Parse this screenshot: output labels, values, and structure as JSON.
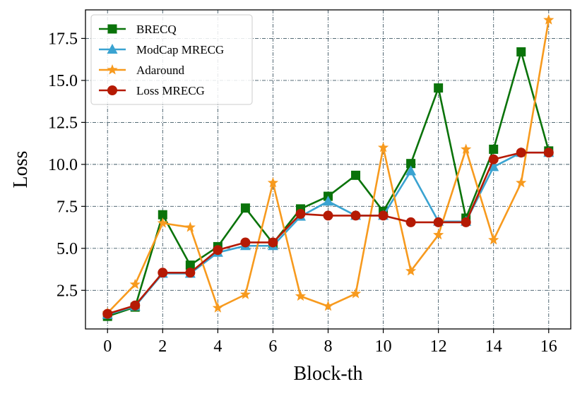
{
  "chart_data": {
    "type": "line",
    "title": "",
    "xlabel": "Block-th",
    "ylabel": "Loss",
    "xlim": [
      -0.8,
      16.8
    ],
    "ylim": [
      0.2,
      19.2
    ],
    "xticks": [
      0,
      2,
      4,
      6,
      8,
      10,
      12,
      14,
      16
    ],
    "xtick_labels": [
      "0",
      "2",
      "4",
      "6",
      "8",
      "10",
      "12",
      "14",
      "16"
    ],
    "yticks": [
      2.5,
      5.0,
      7.5,
      10.0,
      12.5,
      15.0,
      17.5
    ],
    "ytick_labels": [
      "2.5",
      "5.0",
      "7.5",
      "10.0",
      "12.5",
      "15.0",
      "17.5"
    ],
    "grid": true,
    "legend_position": "top-left",
    "x": [
      0,
      1,
      2,
      3,
      4,
      5,
      6,
      7,
      8,
      9,
      10,
      11,
      12,
      13,
      14,
      15,
      16
    ],
    "series": [
      {
        "name": "BRECQ",
        "color": "#0a730a",
        "marker": "square",
        "values": [
          0.95,
          1.5,
          7.0,
          4.0,
          5.1,
          7.4,
          5.3,
          7.35,
          8.1,
          9.35,
          7.2,
          10.05,
          14.55,
          6.8,
          10.9,
          16.7,
          10.8
        ]
      },
      {
        "name": "ModCap MRECG",
        "color": "#3aa3d1",
        "marker": "triangle",
        "values": [
          1.05,
          1.55,
          3.5,
          3.5,
          4.75,
          5.15,
          5.15,
          6.9,
          7.8,
          6.95,
          6.95,
          9.6,
          6.6,
          6.6,
          9.85,
          10.7,
          10.7
        ]
      },
      {
        "name": "Adaround",
        "color": "#f79a1e",
        "marker": "star",
        "values": [
          1.15,
          2.85,
          6.5,
          6.25,
          1.45,
          2.25,
          8.9,
          2.15,
          1.55,
          2.3,
          11.0,
          3.65,
          5.8,
          10.9,
          5.5,
          8.9,
          18.6
        ]
      },
      {
        "name": "Loss MRECG",
        "color": "#b51a04",
        "marker": "circle",
        "values": [
          1.1,
          1.6,
          3.55,
          3.55,
          4.9,
          5.35,
          5.35,
          7.05,
          6.95,
          6.95,
          6.95,
          6.55,
          6.55,
          6.55,
          10.3,
          10.7,
          10.7
        ]
      }
    ]
  }
}
